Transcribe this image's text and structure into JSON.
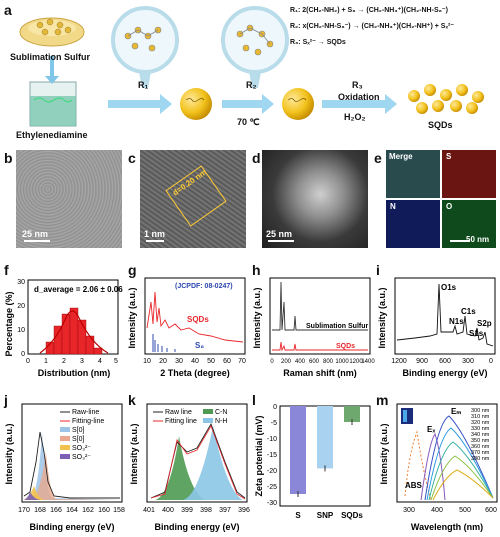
{
  "panel_a": {
    "label": "a",
    "sublimation_sulfur": "Sublimation Sulfur",
    "ethylenediamine": "Ethylenediamine",
    "r1": "R₁",
    "r2": "R₂",
    "r3": "R₃",
    "temp": "70 ℃",
    "oxidation": "Oxidation",
    "h2o2": "H₂O₂",
    "sqds": "SQDs",
    "eq1": "R₁: 2(CH₂-NH₂) + S₈ → (CH₂-NH₃⁺)(CH₂-NH-S₈⁻)",
    "eq2": "R₂: x(CH₂-NH-S₈⁻) → (CH₂-NH₃⁺)(CH₂-NH⁺) + Sₓ²⁻",
    "eq3": "R₃: Sₓ²⁻ → SQDs"
  },
  "panel_b": {
    "label": "b",
    "scale": "25 nm"
  },
  "panel_c": {
    "label": "c",
    "scale": "1 nm",
    "lattice": "d=0.20 nm"
  },
  "panel_d": {
    "label": "d",
    "scale": "25 nm"
  },
  "panel_e": {
    "label": "e",
    "tiles": [
      "Merge",
      "S",
      "N",
      "O"
    ],
    "scale": "50 nm",
    "colors": [
      "#2a4b4e",
      "#6a1512",
      "#101c5a",
      "#0e4a1c"
    ]
  },
  "panel_f": {
    "label": "f",
    "ylabel": "Percentage (%)",
    "xlabel": "Distribution (nm)",
    "annotation": "d_average = 2.06 ± 0.06 nm",
    "xticks": [
      "0",
      "1",
      "2",
      "3",
      "4",
      "5"
    ],
    "yticks": [
      "0",
      "10",
      "20",
      "30"
    ]
  },
  "panel_g": {
    "label": "g",
    "ylabel": "Intensity (a.u.)",
    "xlabel": "2 Theta (degree)",
    "jcpdf": "(JCPDF: 08-0247)",
    "series": [
      "SQDs",
      "S₈"
    ],
    "xticks": [
      "10",
      "20",
      "30",
      "40",
      "50",
      "60",
      "70"
    ]
  },
  "panel_h": {
    "label": "h",
    "ylabel": "Intensity (a.u.)",
    "xlabel": "Raman shift (nm)",
    "series": [
      "Sublimation Sulfur",
      "SQDs"
    ],
    "xticks": [
      "0",
      "200",
      "400",
      "600",
      "800",
      "1000",
      "1200",
      "1400"
    ]
  },
  "panel_i": {
    "label": "i",
    "ylabel": "Intensity (a.u.)",
    "xlabel": "Binding energy (eV)",
    "peaks": [
      "O1s",
      "C1s",
      "N1s",
      "S2p",
      "S1s"
    ],
    "xticks": [
      "1200",
      "900",
      "600",
      "300",
      "0"
    ]
  },
  "panel_j": {
    "label": "j",
    "ylabel": "Intensity (a.u.)",
    "xlabel": "Binding energy (eV)",
    "legend": [
      "Raw-line",
      "Fitting-line",
      "S[0]",
      "S[0]",
      "SO₃²⁻",
      "SO₃²⁻"
    ],
    "xticks": [
      "170",
      "168",
      "166",
      "164",
      "162",
      "160",
      "158"
    ]
  },
  "panel_k": {
    "label": "k",
    "ylabel": "Intensity (a.u.)",
    "xlabel": "Binding energy (eV)",
    "legend": [
      "Raw line",
      "Fitting line",
      "C-N",
      "N-H"
    ],
    "xticks": [
      "401",
      "400",
      "399",
      "398",
      "397",
      "396"
    ]
  },
  "panel_l": {
    "label": "l",
    "ylabel": "Zeta potential (mV)",
    "categories": [
      "S",
      "SNP",
      "SQDs"
    ],
    "values": [
      -27.5,
      -19.5,
      -5
    ],
    "yticks": [
      "0",
      "-5",
      "-10",
      "-15",
      "-20",
      "-25",
      "-30"
    ]
  },
  "panel_m": {
    "label": "m",
    "ylabel": "Intensity (a.u.)",
    "xlabel": "Wavelength (nm)",
    "ex": "Eₓ",
    "em": "Eₘ",
    "abs": "ABS",
    "legend": [
      "300 nm",
      "310 nm",
      "320 nm",
      "330 nm",
      "340 nm",
      "350 nm",
      "360 nm",
      "370 nm",
      "380 nm"
    ],
    "xticks": [
      "300",
      "400",
      "500",
      "600"
    ]
  }
}
